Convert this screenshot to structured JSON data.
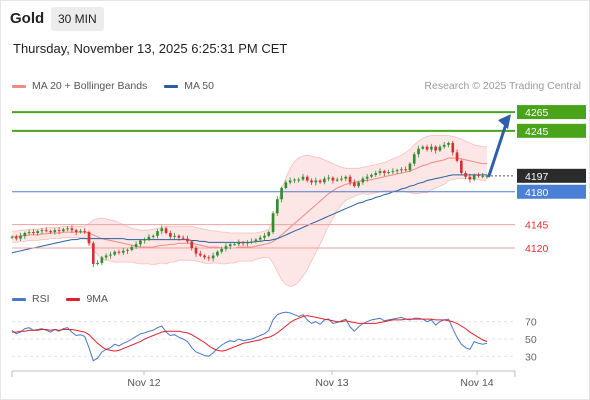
{
  "instrument": "Gold",
  "timeframe": "30 MIN",
  "datetime": "Thursday, November 13, 2025 6:25:31 PM CET",
  "legend": [
    {
      "label": "MA 20 + Bollinger Bands",
      "color": "#f08a82"
    },
    {
      "label": "MA 50",
      "color": "#2b5e9e"
    }
  ],
  "credit": "Research © 2025 Trading Central",
  "rsi_legend": [
    {
      "label": "RSI",
      "color": "#4a78c8"
    },
    {
      "label": "9MA",
      "color": "#e0202a"
    }
  ],
  "colors": {
    "up_candle": "#2f8f2f",
    "down_candle": "#d83030",
    "resistance": "#4aa419",
    "pivot": "#4a7fd6",
    "support": "#f0a0a0",
    "last_price_bg": "#2b2b2b",
    "arrow": "#2f5fa8",
    "band_fill": "#fde2e2"
  },
  "chart_data": {
    "type": "line",
    "xlabel": "",
    "ylabel": "",
    "x_ticks": [
      "Nov 12",
      "Nov 13",
      "Nov 14"
    ],
    "ylim": [
      4088,
      4280
    ],
    "levels": [
      {
        "value": 4265,
        "label": "4265",
        "kind": "resistance"
      },
      {
        "value": 4245,
        "label": "4245",
        "kind": "resistance"
      },
      {
        "value": 4197,
        "label": "4197",
        "kind": "last"
      },
      {
        "value": 4180,
        "label": "4180",
        "kind": "pivot"
      },
      {
        "value": 4145,
        "label": "4145",
        "kind": "support"
      },
      {
        "value": 4120,
        "label": "4120",
        "kind": "support"
      }
    ],
    "close": [
      4132,
      4130,
      4133,
      4136,
      4137,
      4136,
      4138,
      4139,
      4138,
      4137,
      4139,
      4138,
      4140,
      4141,
      4139,
      4137,
      4138,
      4137,
      4125,
      4103,
      4104,
      4110,
      4112,
      4113,
      4116,
      4115,
      4117,
      4118,
      4121,
      4124,
      4128,
      4129,
      4132,
      4133,
      4138,
      4141,
      4136,
      4132,
      4133,
      4131,
      4130,
      4127,
      4120,
      4114,
      4112,
      4110,
      4109,
      4112,
      4116,
      4119,
      4122,
      4124,
      4124,
      4126,
      4125,
      4126,
      4127,
      4129,
      4131,
      4133,
      4137,
      4157,
      4172,
      4184,
      4190,
      4192,
      4193,
      4193,
      4196,
      4192,
      4190,
      4192,
      4190,
      4194,
      4195,
      4192,
      4193,
      4194,
      4196,
      4190,
      4186,
      4190,
      4194,
      4196,
      4198,
      4200,
      4202,
      4200,
      4201,
      4202,
      4203,
      4204,
      4203,
      4210,
      4220,
      4226,
      4228,
      4225,
      4228,
      4224,
      4228,
      4230,
      4232,
      4222,
      4213,
      4200,
      4196,
      4193,
      4198,
      4197,
      4197,
      4197
    ],
    "bollinger": {
      "ma20": [
        4132,
        4132,
        4133,
        4133,
        4134,
        4134,
        4134,
        4135,
        4135,
        4136,
        4136,
        4136,
        4137,
        4137,
        4137,
        4137,
        4137,
        4137,
        4136,
        4134,
        4132,
        4130,
        4129,
        4128,
        4127,
        4126,
        4125,
        4124,
        4123,
        4122,
        4121,
        4121,
        4121,
        4121,
        4122,
        4123,
        4123,
        4124,
        4124,
        4125,
        4125,
        4125,
        4125,
        4124,
        4123,
        4122,
        4121,
        4121,
        4121,
        4120,
        4120,
        4120,
        4120,
        4121,
        4121,
        4121,
        4121,
        4122,
        4123,
        4124,
        4125,
        4127,
        4130,
        4134,
        4138,
        4142,
        4146,
        4150,
        4154,
        4158,
        4162,
        4166,
        4170,
        4174,
        4178,
        4181,
        4184,
        4186,
        4188,
        4189,
        4190,
        4191,
        4192,
        4192,
        4193,
        4194,
        4195,
        4196,
        4197,
        4198,
        4199,
        4200,
        4201,
        4202,
        4204,
        4206,
        4208,
        4209,
        4211,
        4212,
        4213,
        4214,
        4216,
        4216,
        4216,
        4215,
        4214,
        4213,
        4212,
        4211,
        4210,
        4210
      ],
      "upper": [
        4138,
        4138,
        4139,
        4139,
        4140,
        4140,
        4140,
        4141,
        4141,
        4142,
        4142,
        4142,
        4143,
        4143,
        4143,
        4143,
        4143,
        4143,
        4146,
        4150,
        4151,
        4152,
        4151,
        4150,
        4149,
        4147,
        4145,
        4143,
        4141,
        4140,
        4139,
        4139,
        4139,
        4140,
        4141,
        4142,
        4143,
        4143,
        4143,
        4143,
        4143,
        4143,
        4143,
        4142,
        4141,
        4140,
        4139,
        4138,
        4138,
        4137,
        4137,
        4136,
        4136,
        4136,
        4136,
        4136,
        4136,
        4136,
        4137,
        4138,
        4140,
        4150,
        4165,
        4182,
        4195,
        4205,
        4212,
        4216,
        4218,
        4219,
        4218,
        4217,
        4216,
        4214,
        4212,
        4210,
        4208,
        4206,
        4205,
        4205,
        4205,
        4205,
        4206,
        4207,
        4208,
        4209,
        4210,
        4211,
        4213,
        4215,
        4217,
        4219,
        4222,
        4225,
        4230,
        4234,
        4237,
        4239,
        4240,
        4240,
        4240,
        4240,
        4240,
        4239,
        4238,
        4236,
        4234,
        4232,
        4230,
        4229,
        4228,
        4228
      ],
      "lower": [
        4126,
        4126,
        4127,
        4127,
        4128,
        4128,
        4128,
        4129,
        4129,
        4130,
        4130,
        4130,
        4131,
        4131,
        4131,
        4131,
        4131,
        4131,
        4126,
        4118,
        4113,
        4108,
        4107,
        4106,
        4105,
        4105,
        4105,
        4105,
        4105,
        4104,
        4103,
        4103,
        4103,
        4102,
        4103,
        4104,
        4103,
        4105,
        4105,
        4107,
        4107,
        4107,
        4107,
        4106,
        4105,
        4104,
        4103,
        4104,
        4104,
        4103,
        4103,
        4104,
        4104,
        4106,
        4106,
        4106,
        4106,
        4108,
        4109,
        4110,
        4110,
        4104,
        4095,
        4086,
        4081,
        4079,
        4080,
        4084,
        4090,
        4097,
        4106,
        4115,
        4124,
        4134,
        4144,
        4152,
        4160,
        4166,
        4171,
        4173,
        4175,
        4177,
        4178,
        4177,
        4178,
        4179,
        4180,
        4181,
        4181,
        4181,
        4181,
        4181,
        4180,
        4179,
        4178,
        4178,
        4179,
        4179,
        4182,
        4184,
        4186,
        4188,
        4192,
        4193,
        4194,
        4194,
        4194,
        4194,
        4194,
        4193,
        4192,
        4192
      ]
    },
    "ma50": [
      4115,
      4116,
      4117,
      4118,
      4119,
      4120,
      4121,
      4122,
      4123,
      4124,
      4125,
      4126,
      4127,
      4128,
      4129,
      4129,
      4130,
      4130,
      4130,
      4130,
      4130,
      4130,
      4130,
      4130,
      4130,
      4130,
      4130,
      4129,
      4129,
      4129,
      4129,
      4129,
      4129,
      4129,
      4129,
      4129,
      4129,
      4129,
      4129,
      4129,
      4129,
      4129,
      4128,
      4128,
      4127,
      4127,
      4126,
      4126,
      4126,
      4126,
      4126,
      4126,
      4126,
      4126,
      4126,
      4126,
      4126,
      4127,
      4127,
      4128,
      4128,
      4129,
      4130,
      4132,
      4134,
      4136,
      4138,
      4140,
      4142,
      4144,
      4146,
      4148,
      4150,
      4152,
      4154,
      4156,
      4158,
      4160,
      4162,
      4164,
      4166,
      4168,
      4169,
      4171,
      4172,
      4174,
      4175,
      4177,
      4178,
      4180,
      4181,
      4183,
      4184,
      4186,
      4187,
      4189,
      4190,
      4192,
      4193,
      4194,
      4195,
      4196,
      4197,
      4198,
      4198,
      4198,
      4198,
      4198,
      4198,
      4198,
      4198,
      4198
    ],
    "projection": {
      "from": 4197,
      "to": 4265
    },
    "rsi": {
      "ylim": [
        20,
        80
      ],
      "ticks": [
        70,
        50,
        30
      ],
      "rsi": [
        60,
        56,
        58,
        62,
        63,
        60,
        61,
        62,
        60,
        58,
        61,
        59,
        62,
        63,
        58,
        54,
        55,
        53,
        40,
        25,
        28,
        35,
        38,
        40,
        44,
        42,
        45,
        47,
        50,
        53,
        56,
        57,
        59,
        60,
        63,
        65,
        58,
        54,
        55,
        52,
        50,
        47,
        40,
        35,
        33,
        31,
        30,
        34,
        39,
        43,
        46,
        48,
        47,
        50,
        48,
        49,
        50,
        52,
        54,
        56,
        60,
        72,
        78,
        80,
        81,
        80,
        78,
        76,
        78,
        72,
        68,
        70,
        67,
        72,
        73,
        68,
        69,
        71,
        73,
        64,
        59,
        64,
        68,
        70,
        72,
        73,
        74,
        71,
        72,
        73,
        74,
        75,
        73,
        72,
        74,
        74,
        73,
        70,
        72,
        66,
        70,
        72,
        73,
        62,
        52,
        44,
        40,
        38,
        47,
        45,
        44,
        45
      ],
      "ma9": [
        58,
        58,
        59,
        59,
        60,
        60,
        60,
        61,
        61,
        60,
        61,
        60,
        61,
        61,
        61,
        60,
        59,
        58,
        55,
        50,
        45,
        41,
        38,
        37,
        36,
        37,
        39,
        41,
        43,
        45,
        47,
        50,
        52,
        54,
        56,
        58,
        59,
        59,
        59,
        59,
        58,
        57,
        55,
        52,
        49,
        46,
        42,
        39,
        37,
        36,
        37,
        39,
        41,
        43,
        45,
        46,
        47,
        48,
        49,
        51,
        52,
        54,
        57,
        61,
        65,
        69,
        72,
        74,
        76,
        77,
        76,
        75,
        74,
        73,
        72,
        71,
        70,
        70,
        71,
        70,
        69,
        68,
        68,
        68,
        68,
        68,
        69,
        70,
        71,
        72,
        72,
        72,
        73,
        73,
        73,
        73,
        73,
        73,
        73,
        72,
        72,
        72,
        71,
        70,
        68,
        65,
        62,
        58,
        55,
        52,
        49,
        47
      ]
    }
  }
}
